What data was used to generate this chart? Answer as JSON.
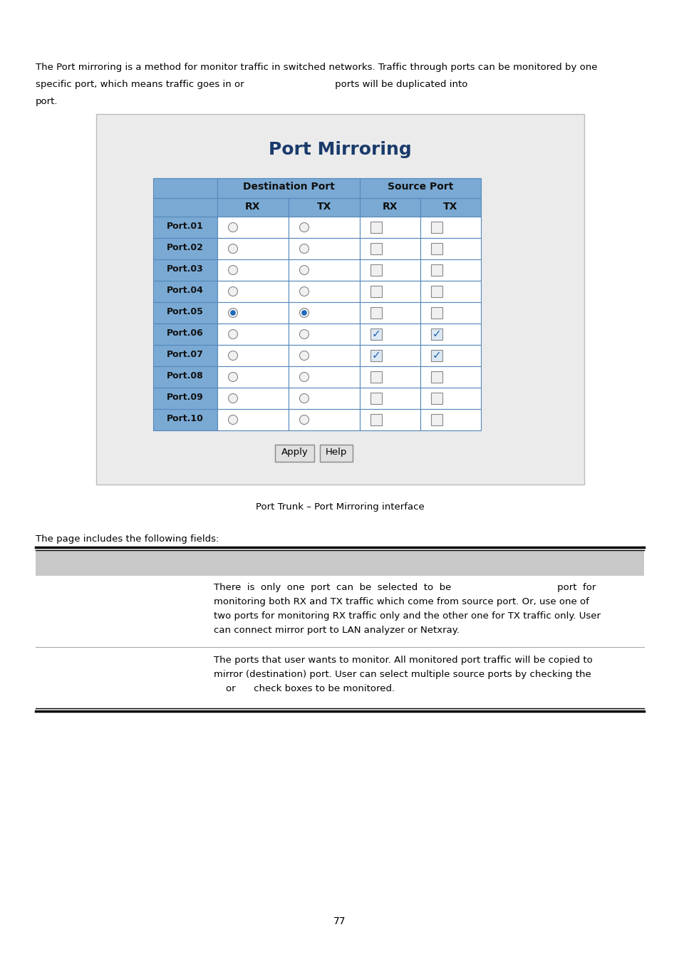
{
  "bg_color": "#ffffff",
  "top_text_line1": "The Port mirroring is a method for monitor traffic in switched networks. Traffic through ports can be monitored by one",
  "top_text_line2": "specific port, which means traffic goes in or                              ports will be duplicated into",
  "top_text_line3": "port.",
  "panel_bg": "#e8e8e8",
  "panel_border": "#aaaaaa",
  "panel_title": "Port Mirroring",
  "panel_title_color": "#1a3a6b",
  "table_header_bg": "#7aaad4",
  "table_header_border": "#5588bb",
  "table_row_bg_port": "#7aaad4",
  "table_row_bg_white": "#ffffff",
  "ports": [
    "Port.01",
    "Port.02",
    "Port.03",
    "Port.04",
    "Port.05",
    "Port.06",
    "Port.07",
    "Port.08",
    "Port.09",
    "Port.10"
  ],
  "dest_rx_selected": [
    false,
    false,
    false,
    false,
    true,
    false,
    false,
    false,
    false,
    false
  ],
  "dest_tx_selected": [
    false,
    false,
    false,
    false,
    true,
    false,
    false,
    false,
    false,
    false
  ],
  "src_rx_checked": [
    false,
    false,
    false,
    false,
    false,
    true,
    true,
    false,
    false,
    false
  ],
  "src_tx_checked": [
    false,
    false,
    false,
    false,
    false,
    true,
    true,
    false,
    false,
    false
  ],
  "caption": "Port Trunk – Port Mirroring interface",
  "fields_label": "The page includes the following fields:",
  "row1_text_lines": [
    "There  is  only  one  port  can  be  selected  to  be                                   port  for",
    "monitoring both RX and TX traffic which come from source port. Or, use one of",
    "two ports for monitoring RX traffic only and the other one for TX traffic only. User",
    "can connect mirror port to LAN analyzer or Netxray."
  ],
  "row2_text_lines": [
    "The ports that user wants to monitor. All monitored port traffic will be copied to",
    "mirror (destination) port. User can select multiple source ports by checking the",
    "    or      check boxes to be monitored."
  ],
  "page_number": "77"
}
